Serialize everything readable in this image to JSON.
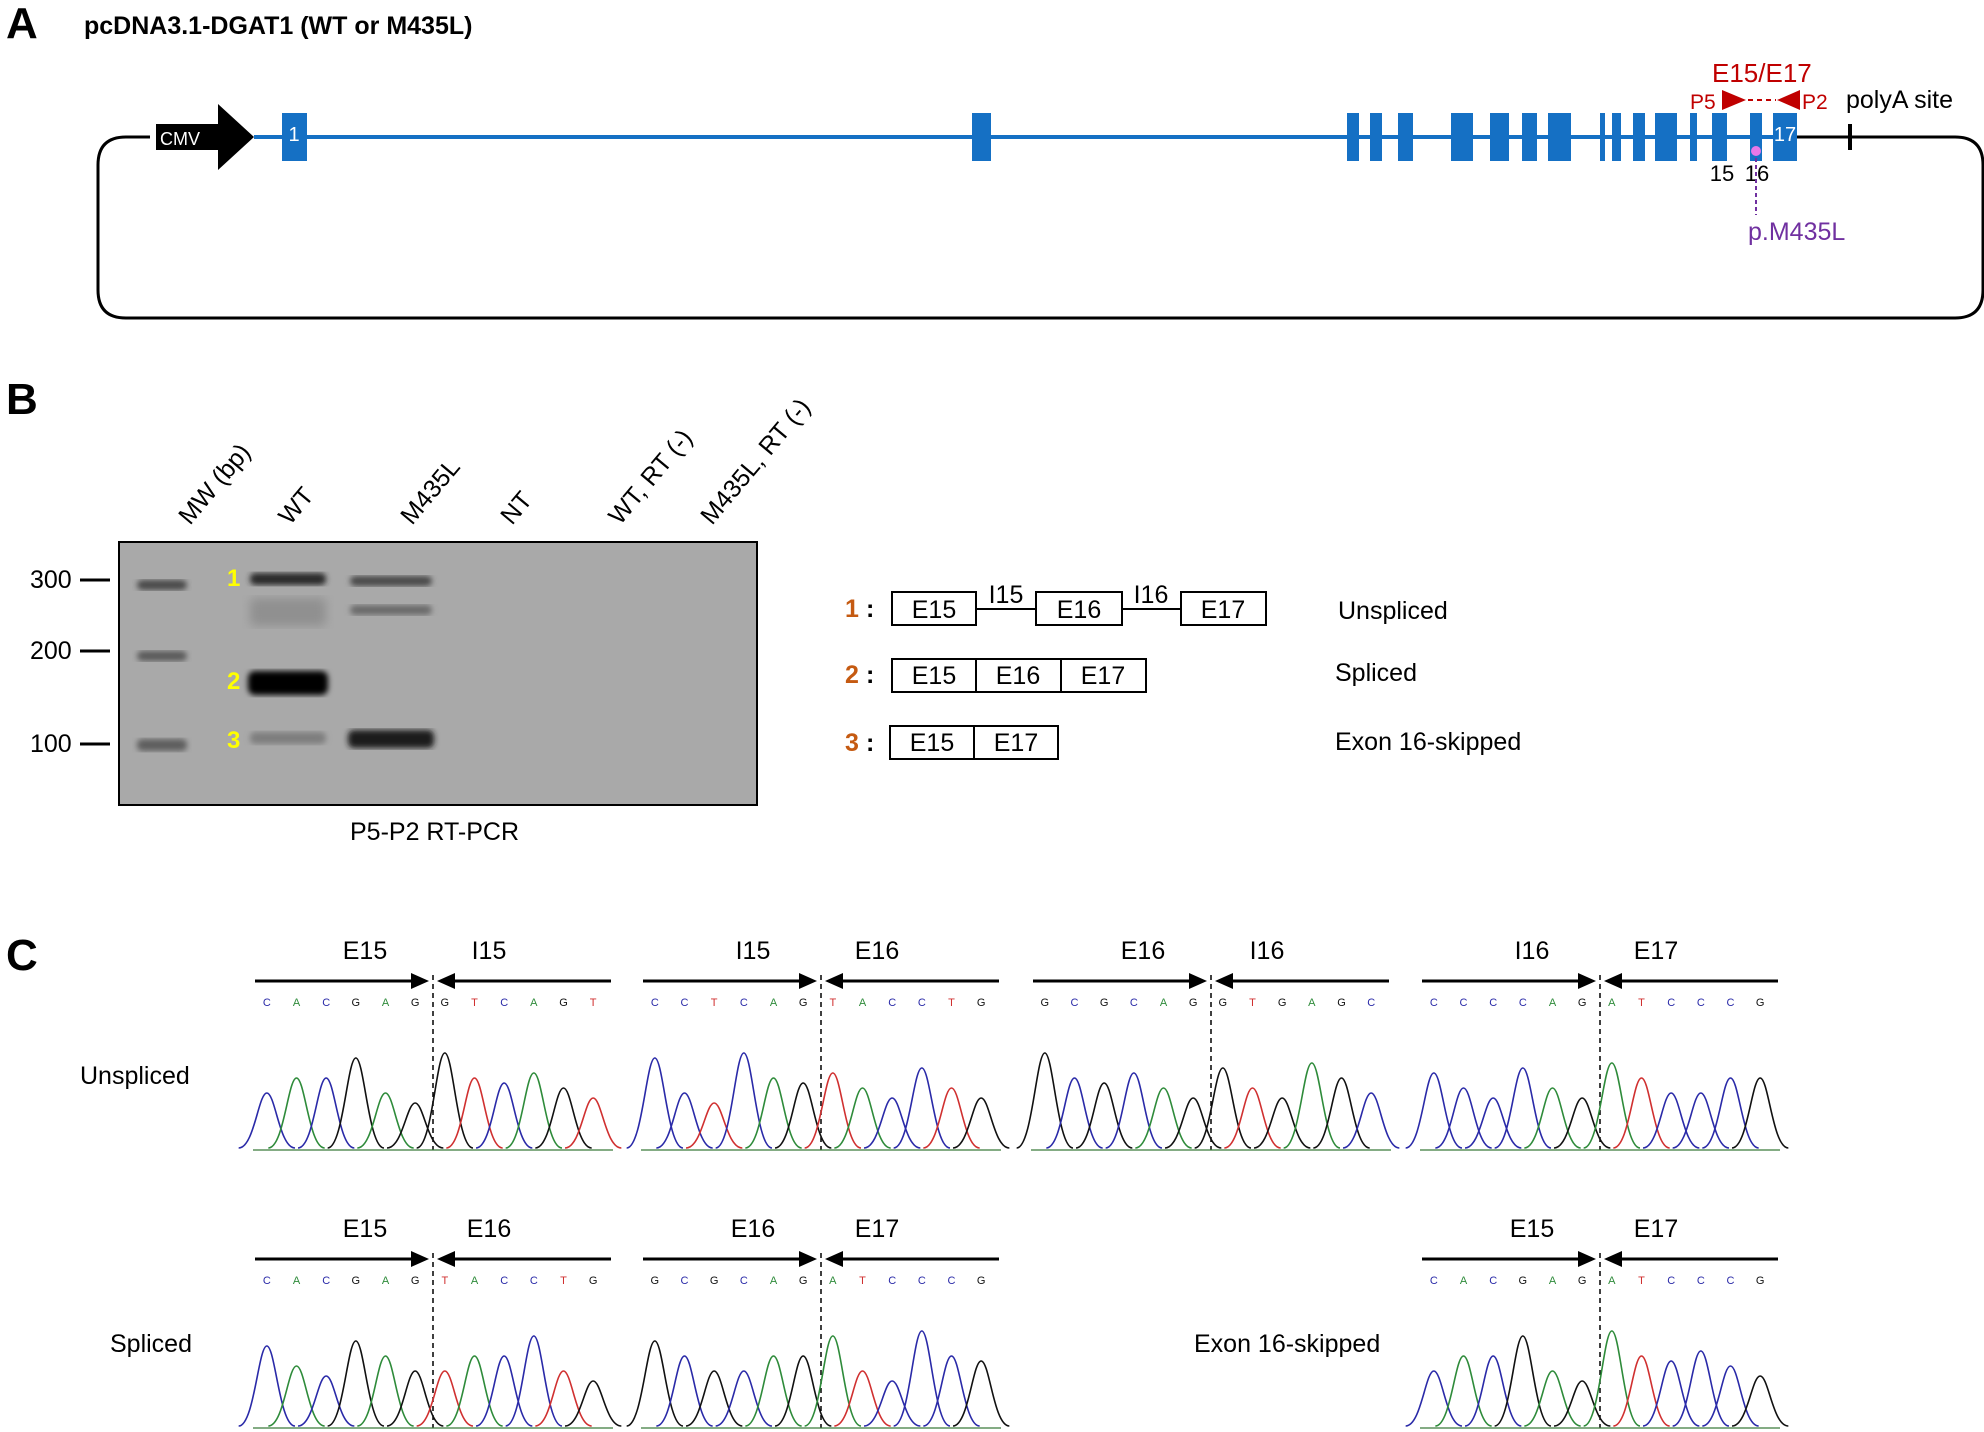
{
  "colors": {
    "exon": "#1570c4",
    "primer": "#c00000",
    "mutation": "#7030a0",
    "mutation_dot": "#e878e8",
    "band_label": "#ffff00",
    "number": "#c55a11",
    "A": "#2e8b3a",
    "C": "#2a2aa8",
    "G": "#111111",
    "T": "#d03030"
  },
  "panel_a": {
    "letter": "A",
    "title": "pcDNA3.1-DGAT1 (WT or M435L)",
    "promoter": "CMV",
    "exon_1": "1",
    "exon_15": "15",
    "exon_16": "16",
    "exon_17": "17",
    "primer_pair": "E15/E17",
    "primer_fwd": "P5",
    "primer_rev": "P2",
    "polya": "polyA site",
    "mutation": "p.M435L"
  },
  "panel_b": {
    "letter": "B",
    "lanes": [
      "MW (bp)",
      "WT",
      "M435L",
      "NT",
      "WT, RT (-)",
      "M435L, RT (-)"
    ],
    "mw_markers": [
      "300",
      "200",
      "100"
    ],
    "band_labels": [
      "1",
      "2",
      "3"
    ],
    "caption": "P5-P2 RT-PCR",
    "products": [
      {
        "num": "1",
        "boxes": [
          "E15",
          "E16",
          "E17"
        ],
        "introns": [
          "I15",
          "I16"
        ],
        "name": "Unspliced"
      },
      {
        "num": "2",
        "boxes": [
          "E15",
          "E16",
          "E17"
        ],
        "name": "Spliced"
      },
      {
        "num": "3",
        "boxes": [
          "E15",
          "E17"
        ],
        "name": "Exon 16-skipped"
      }
    ]
  },
  "panel_c": {
    "letter": "C",
    "row_labels": [
      "Unspliced",
      "Spliced",
      "Exon 16-skipped"
    ],
    "traces": [
      {
        "left": "E15",
        "right": "I15",
        "seq": "CACGAGGTCAGT"
      },
      {
        "left": "I15",
        "right": "E16",
        "seq": "CCTCAGTACCTG"
      },
      {
        "left": "E16",
        "right": "I16",
        "seq": "GCGCAGGTGAGC"
      },
      {
        "left": "I16",
        "right": "E17",
        "seq": "CCCCAGATCCCG"
      },
      {
        "left": "E15",
        "right": "E16",
        "seq": "CACGAGTACCTG"
      },
      {
        "left": "E16",
        "right": "E17",
        "seq": "GCGCAGATCCCG"
      },
      {
        "left": "E15",
        "right": "E17",
        "seq": "CACGAGATCCCG"
      }
    ]
  }
}
